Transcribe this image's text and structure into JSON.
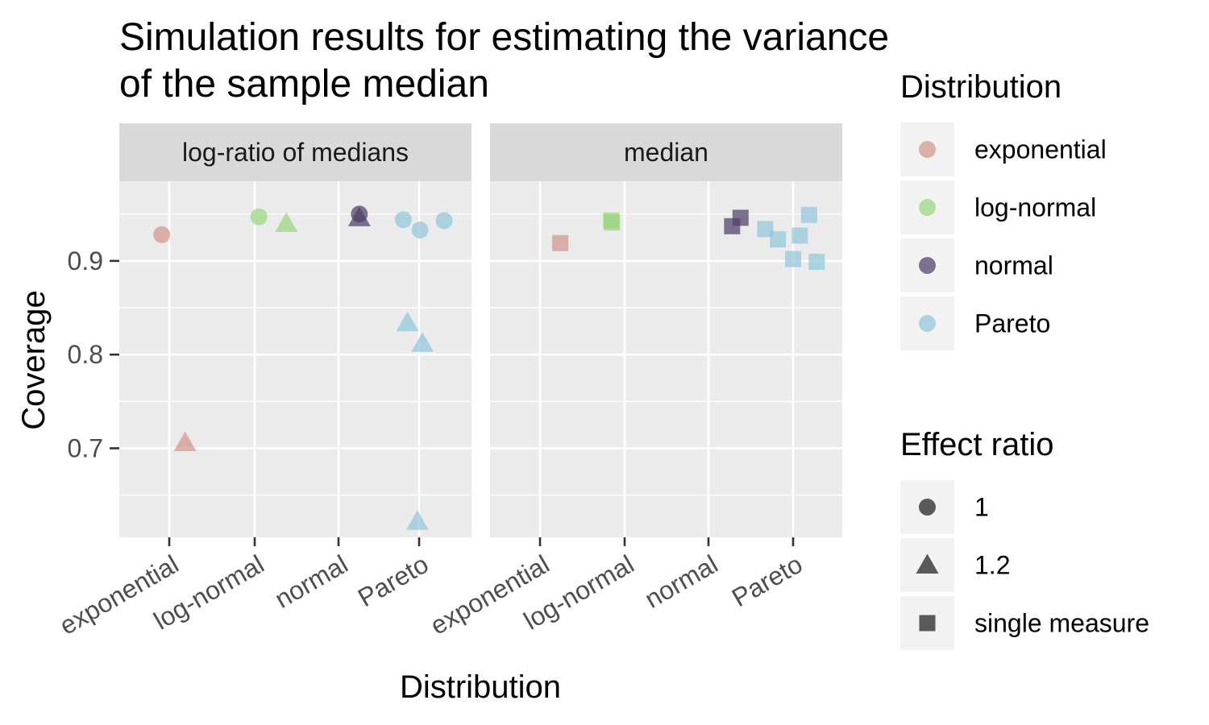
{
  "chart_data": {
    "type": "scatter",
    "title": "Simulation results for estimating the variance of the sample median",
    "title_lines": [
      "Simulation results for estimating the variance",
      "of the sample median"
    ],
    "xlabel": "Distribution",
    "ylabel": "Coverage",
    "categories": [
      "exponential",
      "log-normal",
      "normal",
      "Pareto"
    ],
    "ylim": [
      0.605,
      0.985
    ],
    "yticks": [
      0.7,
      0.8,
      0.9
    ],
    "ytick_labels": [
      "0.7",
      "0.8",
      "0.9"
    ],
    "grid": true,
    "colors": {
      "exponential": "#d0968a",
      "log-normal": "#99d67e",
      "normal": "#4f3f68",
      "Pareto": "#92c6dc",
      "panel_bg": "#ebebeb",
      "strip_bg": "#d9d9d9",
      "grid": "#ffffff",
      "legend_key_bg": "#f2f2f2",
      "shape_key": "#595959"
    },
    "panels": [
      {
        "strip": "log-ratio of medians",
        "points": [
          {
            "category": "exponential",
            "offset": -0.09,
            "y": 0.928,
            "shape": "circle"
          },
          {
            "category": "exponential",
            "offset": 0.19,
            "y": 0.706,
            "shape": "triangle"
          },
          {
            "category": "log-normal",
            "offset": 0.05,
            "y": 0.947,
            "shape": "circle"
          },
          {
            "category": "log-normal",
            "offset": 0.38,
            "y": 0.94,
            "shape": "triangle"
          },
          {
            "category": "normal",
            "offset": 0.25,
            "y": 0.95,
            "shape": "circle"
          },
          {
            "category": "normal",
            "offset": 0.25,
            "y": 0.946,
            "shape": "triangle"
          },
          {
            "category": "Pareto",
            "offset": -0.19,
            "y": 0.944,
            "shape": "circle"
          },
          {
            "category": "Pareto",
            "offset": 0.01,
            "y": 0.933,
            "shape": "circle"
          },
          {
            "category": "Pareto",
            "offset": 0.3,
            "y": 0.943,
            "shape": "circle"
          },
          {
            "category": "Pareto",
            "offset": -0.14,
            "y": 0.834,
            "shape": "triangle"
          },
          {
            "category": "Pareto",
            "offset": 0.04,
            "y": 0.812,
            "shape": "triangle"
          },
          {
            "category": "Pareto",
            "offset": -0.02,
            "y": 0.622,
            "shape": "triangle"
          }
        ]
      },
      {
        "strip": "median",
        "points": [
          {
            "category": "exponential",
            "offset": 0.24,
            "y": 0.919,
            "shape": "square"
          },
          {
            "category": "log-normal",
            "offset": -0.16,
            "y": 0.943,
            "shape": "square"
          },
          {
            "category": "log-normal",
            "offset": -0.15,
            "y": 0.941,
            "shape": "square"
          },
          {
            "category": "normal",
            "offset": 0.28,
            "y": 0.937,
            "shape": "square"
          },
          {
            "category": "normal",
            "offset": 0.38,
            "y": 0.946,
            "shape": "square"
          },
          {
            "category": "Pareto",
            "offset": -0.33,
            "y": 0.934,
            "shape": "square"
          },
          {
            "category": "Pareto",
            "offset": -0.18,
            "y": 0.923,
            "shape": "square"
          },
          {
            "category": "Pareto",
            "offset": 0.0,
            "y": 0.902,
            "shape": "square"
          },
          {
            "category": "Pareto",
            "offset": 0.08,
            "y": 0.927,
            "shape": "square"
          },
          {
            "category": "Pareto",
            "offset": 0.19,
            "y": 0.949,
            "shape": "square"
          },
          {
            "category": "Pareto",
            "offset": 0.28,
            "y": 0.899,
            "shape": "square"
          }
        ]
      }
    ],
    "legend": {
      "placement": "right",
      "color": {
        "title": "Distribution",
        "items": [
          {
            "label": "exponential",
            "color": "#d0968a"
          },
          {
            "label": "log-normal",
            "color": "#99d67e"
          },
          {
            "label": "normal",
            "color": "#4f3f68"
          },
          {
            "label": "Pareto",
            "color": "#92c6dc"
          }
        ]
      },
      "shape": {
        "title": "Effect ratio",
        "items": [
          {
            "label": "1",
            "shape": "circle"
          },
          {
            "label": "1.2",
            "shape": "triangle"
          },
          {
            "label": "single measure",
            "shape": "square"
          }
        ]
      }
    }
  }
}
